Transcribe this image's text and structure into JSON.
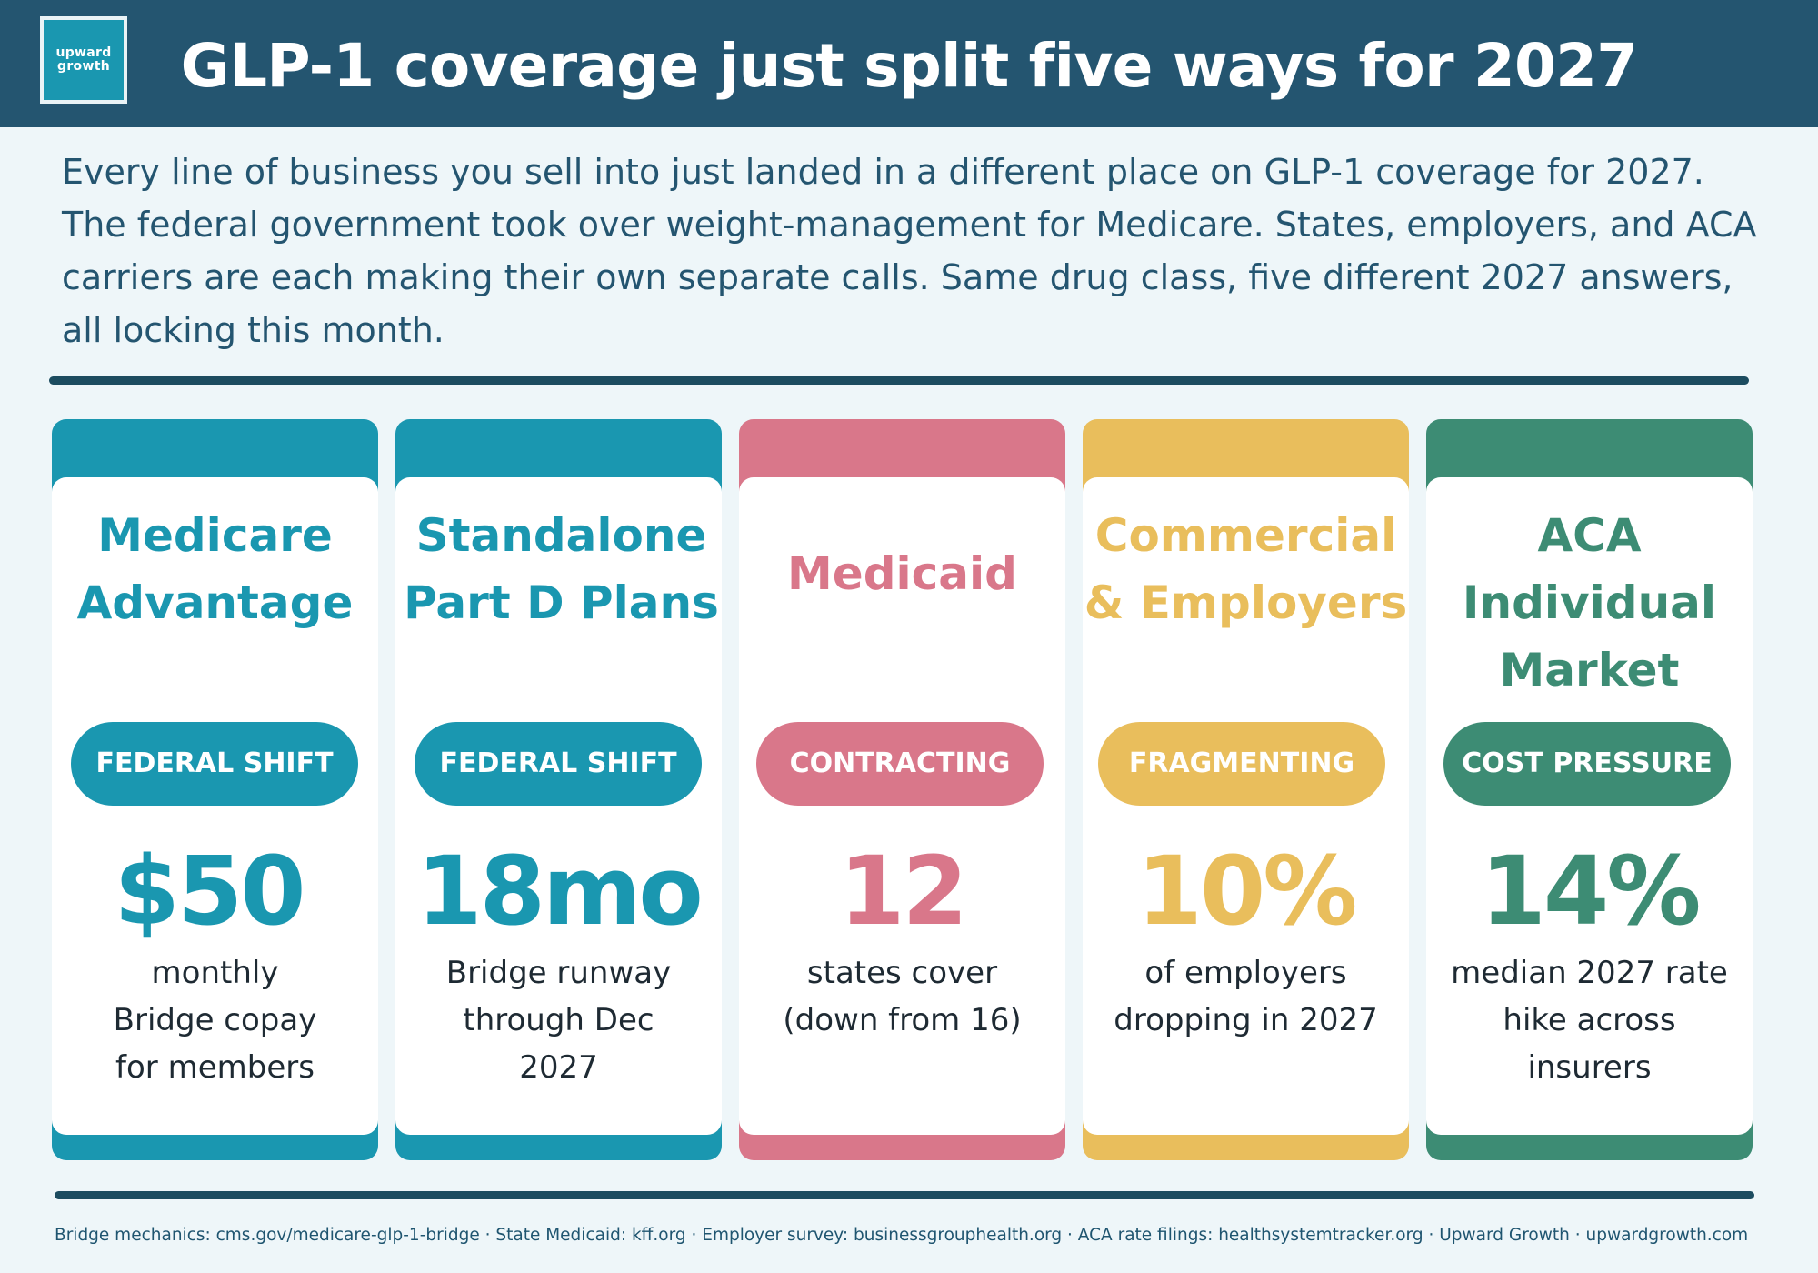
{
  "brand": {
    "logo_line1": "upward",
    "logo_line2": "growth"
  },
  "title": "GLP-1 coverage just split five ways for 2027",
  "intro": "Every line of business you sell into just landed in a different place on GLP-1 coverage for 2027. The federal government took over weight-management for Medicare. States, employers, and ACA carriers are each making their own separate calls. Same drug class, five different 2027 answers, all locking this month.",
  "cards": [
    {
      "title_lines": [
        "Medicare",
        "Advantage"
      ],
      "badge": "FEDERAL SHIFT",
      "stat": "$50",
      "desc_lines": [
        "monthly",
        "Bridge copay",
        "for members"
      ],
      "color": "#1a97b0"
    },
    {
      "title_lines": [
        "Standalone",
        "Part D Plans"
      ],
      "badge": "FEDERAL SHIFT",
      "stat": "18mo",
      "desc_lines": [
        "Bridge runway",
        "through Dec",
        "2027"
      ],
      "color": "#1a97b0"
    },
    {
      "title_lines": [
        "Medicaid"
      ],
      "badge": "CONTRACTING",
      "stat": "12",
      "desc_lines": [
        "states cover",
        "(down from 16)"
      ],
      "color": "#d9778a"
    },
    {
      "title_lines": [
        "Commercial",
        "& Employers"
      ],
      "badge": "FRAGMENTING",
      "stat": "10%",
      "desc_lines": [
        "of employers",
        "dropping in 2027"
      ],
      "color": "#e9be5c"
    },
    {
      "title_lines": [
        "ACA",
        "Individual",
        "Market"
      ],
      "badge": "COST PRESSURE",
      "stat": "14%",
      "desc_lines": [
        "median 2027 rate",
        "hike across insurers"
      ],
      "color": "#3d8c74"
    }
  ],
  "footer": "Bridge mechanics: cms.gov/medicare-glp-1-bridge · State Medicaid: kff.org · Employer survey: businessgrouphealth.org · ACA rate filings: healthsystemtracker.org · Upward Growth · upwardgrowth.com"
}
